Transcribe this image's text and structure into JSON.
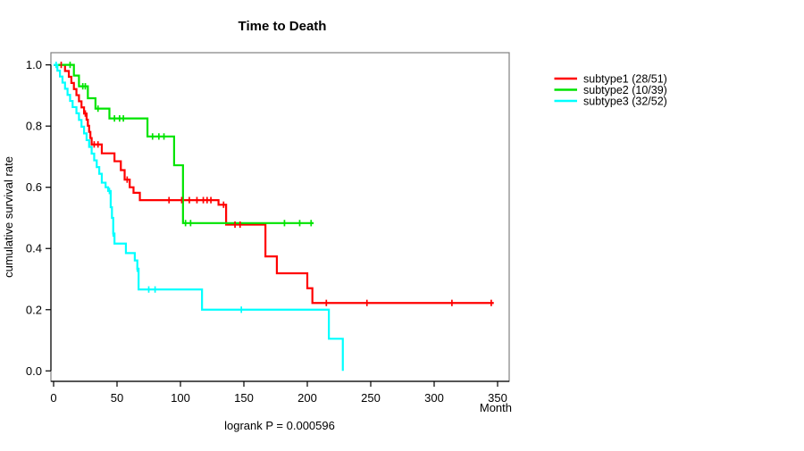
{
  "title": "Time to Death",
  "y_axis_label": "cumulative survival rate",
  "x_axis_label": "Month",
  "footnote": "logrank P = 0.000596",
  "colors": {
    "plot_border": "#808080",
    "axis": "#000000",
    "text": "#000000",
    "background": "#ffffff",
    "subtype1": "#ff0000",
    "subtype2": "#00e400",
    "subtype3": "#00ffff"
  },
  "legend": [
    {
      "label": "subtype1 (28/51)",
      "color": "#ff0000"
    },
    {
      "label": "subtype2 (10/39)",
      "color": "#00e400"
    },
    {
      "label": "subtype3 (32/52)",
      "color": "#00ffff"
    }
  ],
  "chart_data": {
    "type": "line",
    "subtype": "kaplan-meier-step",
    "title": "Time to Death",
    "xlabel": "Month",
    "ylabel": "cumulative survival rate",
    "annotation": "logrank P = 0.000596",
    "xlim": [
      0,
      350
    ],
    "ylim": [
      0.0,
      1.0
    ],
    "x_ticks": [
      0,
      50,
      100,
      150,
      200,
      250,
      300,
      350
    ],
    "y_ticks": [
      {
        "v": 0.0,
        "label": "0.0"
      },
      {
        "v": 0.2,
        "label": "0.2"
      },
      {
        "v": 0.4,
        "label": "0.4"
      },
      {
        "v": 0.6,
        "label": "0.6"
      },
      {
        "v": 0.8,
        "label": "0.8"
      },
      {
        "v": 1.0,
        "label": "1.0"
      }
    ],
    "grid": false,
    "legend_position": "right-outside",
    "series": [
      {
        "name": "subtype1",
        "label": "subtype1 (28/51)",
        "events": 28,
        "n": 51,
        "color": "#ff0000",
        "start": [
          0,
          1.0
        ],
        "end_month": 347,
        "steps": [
          [
            9,
            0.98
          ],
          [
            12,
            0.961
          ],
          [
            14,
            0.941
          ],
          [
            16,
            0.921
          ],
          [
            18,
            0.901
          ],
          [
            20,
            0.881
          ],
          [
            22,
            0.861
          ],
          [
            24,
            0.841
          ],
          [
            26,
            0.821
          ],
          [
            27,
            0.801
          ],
          [
            28,
            0.781
          ],
          [
            29,
            0.761
          ],
          [
            30,
            0.74
          ],
          [
            38,
            0.711
          ],
          [
            48,
            0.685
          ],
          [
            53,
            0.656
          ],
          [
            56,
            0.625
          ],
          [
            60,
            0.6
          ],
          [
            63,
            0.582
          ],
          [
            68,
            0.558
          ],
          [
            130,
            0.543
          ],
          [
            136,
            0.478
          ],
          [
            167,
            0.374
          ],
          [
            176,
            0.319
          ],
          [
            200,
            0.27
          ],
          [
            204,
            0.222
          ]
        ],
        "censors": [
          [
            6,
            1.0
          ],
          [
            25,
            0.841
          ],
          [
            32,
            0.74
          ],
          [
            35,
            0.74
          ],
          [
            58,
            0.625
          ],
          [
            91,
            0.558
          ],
          [
            101,
            0.558
          ],
          [
            107,
            0.558
          ],
          [
            113,
            0.558
          ],
          [
            118,
            0.558
          ],
          [
            121,
            0.558
          ],
          [
            124,
            0.558
          ],
          [
            134,
            0.543
          ],
          [
            143,
            0.478
          ],
          [
            147,
            0.478
          ],
          [
            215,
            0.222
          ],
          [
            247,
            0.222
          ],
          [
            314,
            0.222
          ],
          [
            345,
            0.222
          ]
        ]
      },
      {
        "name": "subtype2",
        "label": "subtype2 (10/39)",
        "events": 10,
        "n": 39,
        "color": "#00e400",
        "start": [
          0,
          1.0
        ],
        "end_month": 205,
        "steps": [
          [
            16,
            0.965
          ],
          [
            20,
            0.93
          ],
          [
            27,
            0.891
          ],
          [
            33,
            0.857
          ],
          [
            44,
            0.825
          ],
          [
            74,
            0.766
          ],
          [
            95,
            0.672
          ],
          [
            102,
            0.483
          ]
        ],
        "censors": [
          [
            13,
            1.0
          ],
          [
            23,
            0.93
          ],
          [
            25,
            0.93
          ],
          [
            35,
            0.857
          ],
          [
            48,
            0.825
          ],
          [
            52,
            0.825
          ],
          [
            55,
            0.825
          ],
          [
            78,
            0.766
          ],
          [
            83,
            0.766
          ],
          [
            87,
            0.766
          ],
          [
            104,
            0.483
          ],
          [
            108,
            0.483
          ],
          [
            182,
            0.483
          ],
          [
            194,
            0.483
          ],
          [
            203,
            0.483
          ]
        ]
      },
      {
        "name": "subtype3",
        "label": "subtype3 (32/52)",
        "events": 32,
        "n": 52,
        "color": "#00ffff",
        "start": [
          0,
          1.0
        ],
        "end_month": 228,
        "steps": [
          [
            3,
            0.981
          ],
          [
            5,
            0.962
          ],
          [
            7,
            0.942
          ],
          [
            9,
            0.922
          ],
          [
            11,
            0.902
          ],
          [
            13,
            0.882
          ],
          [
            15,
            0.862
          ],
          [
            18,
            0.842
          ],
          [
            20,
            0.82
          ],
          [
            22,
            0.798
          ],
          [
            24,
            0.776
          ],
          [
            26,
            0.754
          ],
          [
            28,
            0.732
          ],
          [
            30,
            0.71
          ],
          [
            32,
            0.688
          ],
          [
            34,
            0.666
          ],
          [
            36,
            0.644
          ],
          [
            38,
            0.615
          ],
          [
            41,
            0.6
          ],
          [
            43,
            0.588
          ],
          [
            45,
            0.535
          ],
          [
            46,
            0.5
          ],
          [
            47,
            0.449
          ],
          [
            48,
            0.416
          ],
          [
            57,
            0.385
          ],
          [
            64,
            0.361
          ],
          [
            66,
            0.334
          ],
          [
            67,
            0.266
          ],
          [
            117,
            0.2
          ],
          [
            217,
            0.105
          ],
          [
            228,
            0.0
          ]
        ],
        "censors": [
          [
            2,
            1.0
          ],
          [
            44,
            0.588
          ],
          [
            47,
            0.449
          ],
          [
            66,
            0.334
          ],
          [
            75,
            0.266
          ],
          [
            80,
            0.266
          ],
          [
            148,
            0.2
          ]
        ]
      }
    ]
  }
}
